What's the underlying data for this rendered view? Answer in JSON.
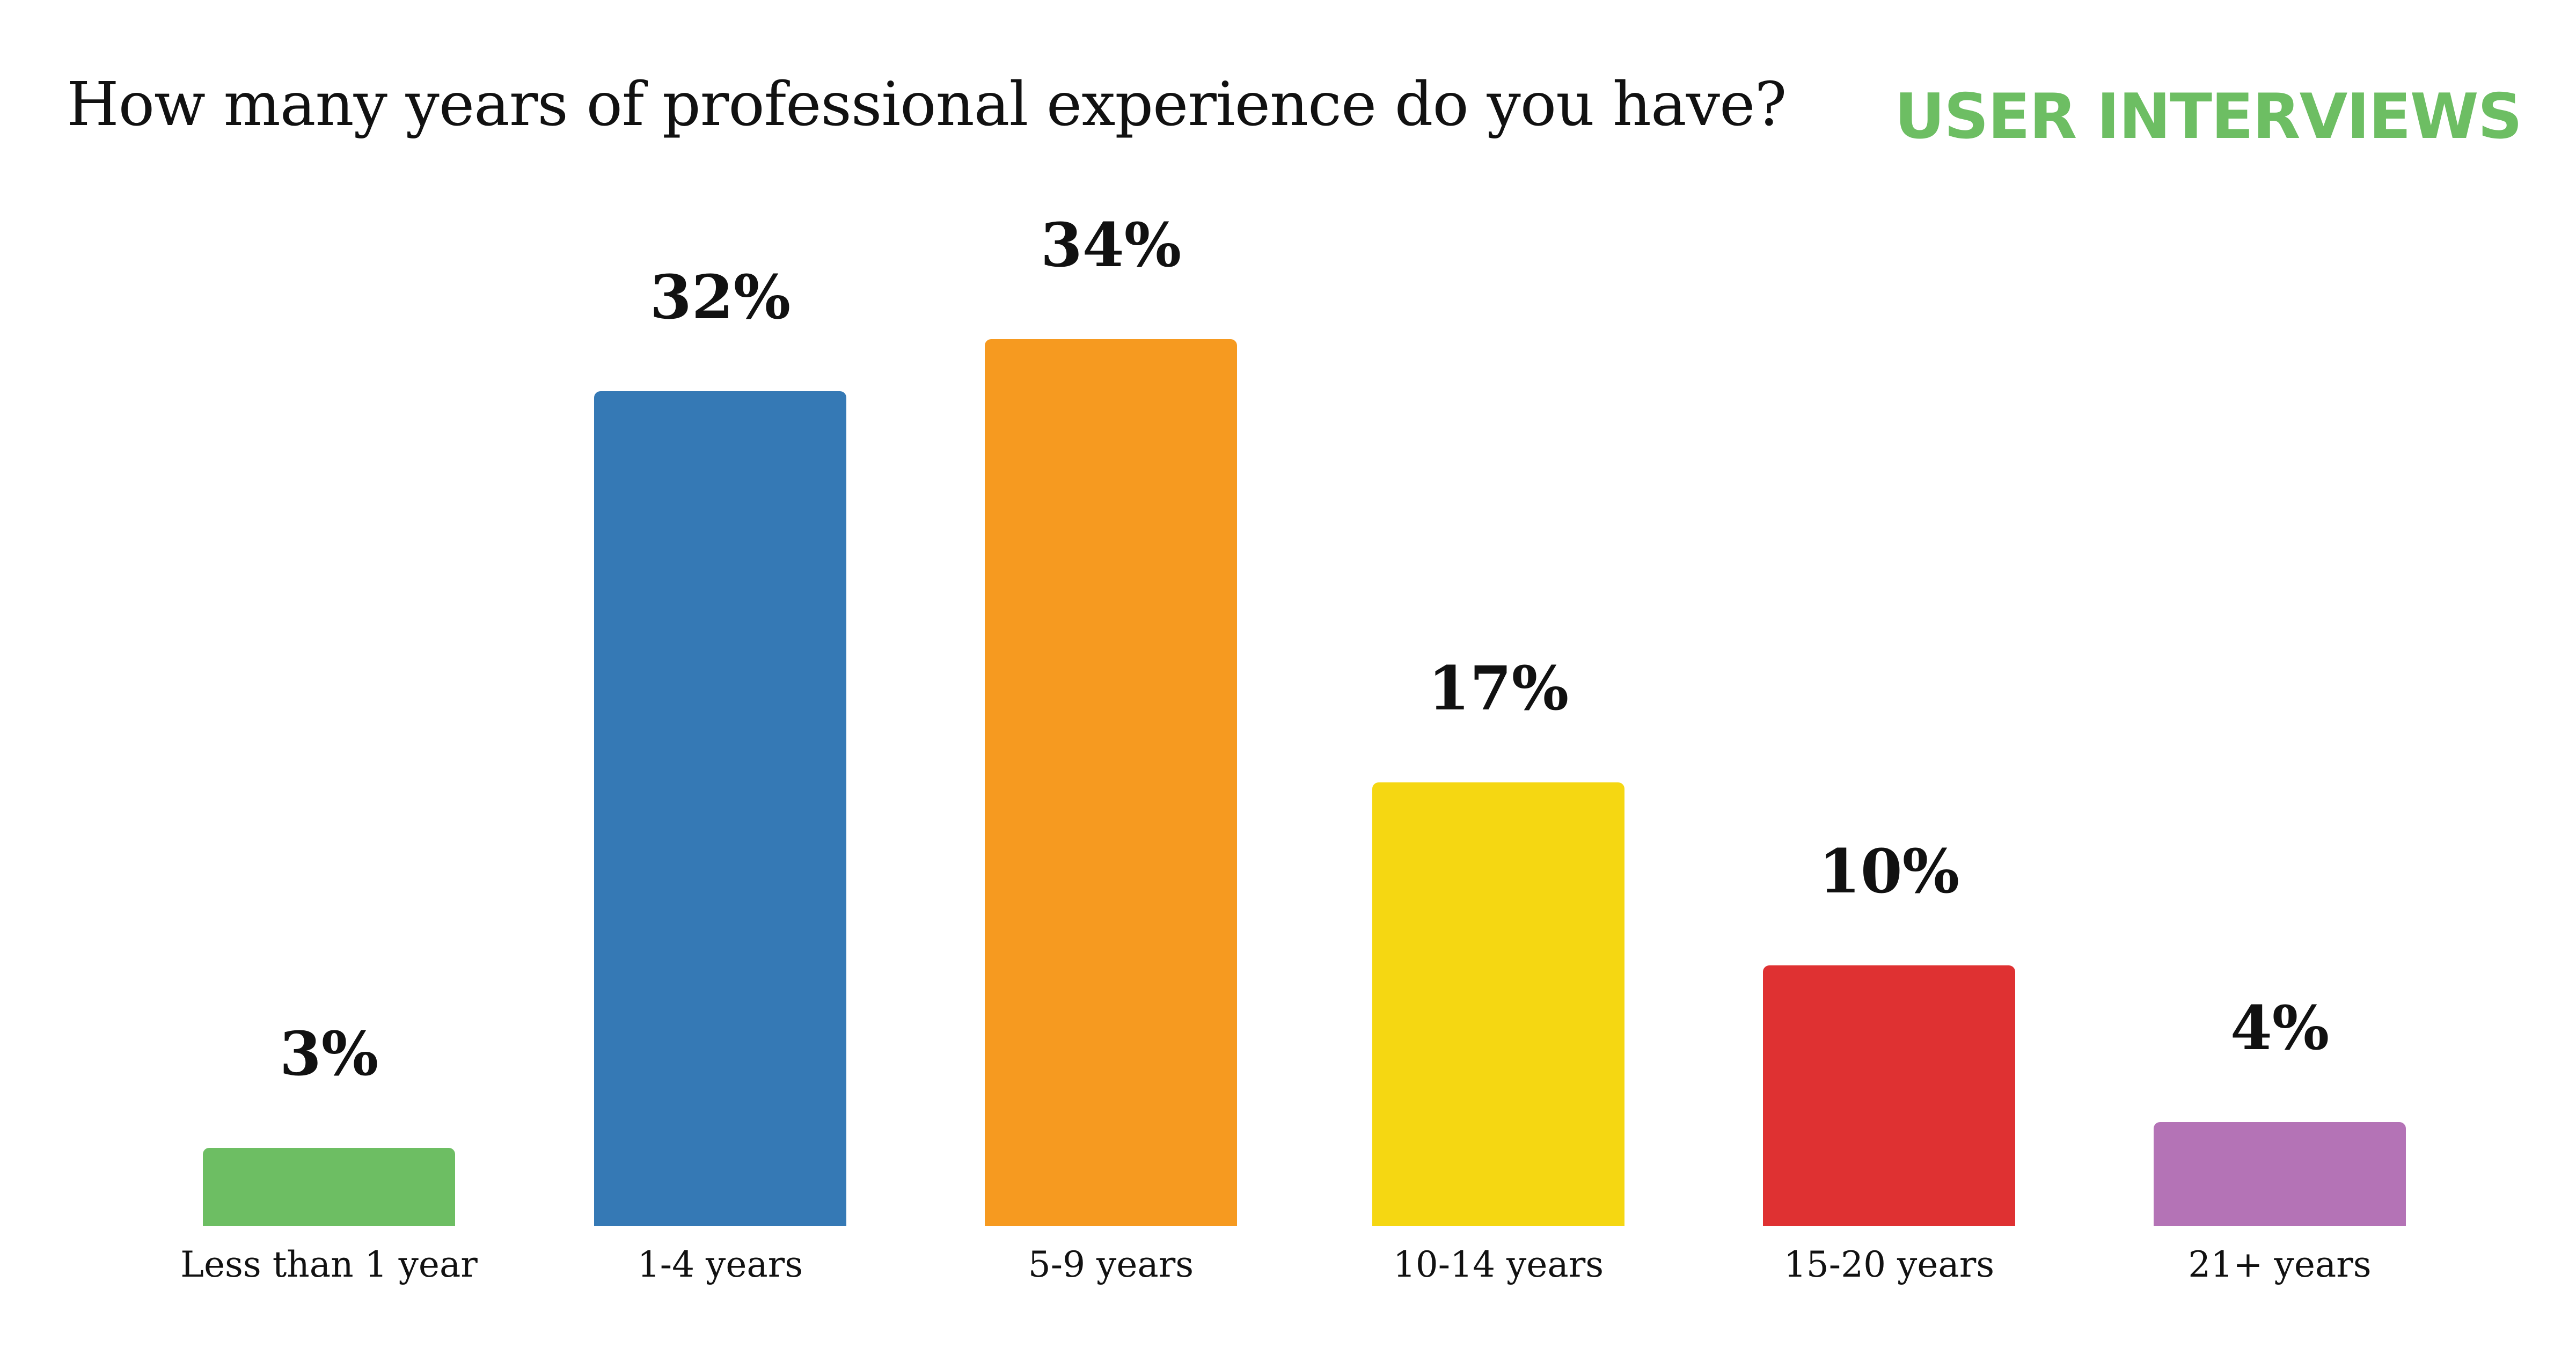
{
  "header": {
    "title": "How many years of professional experience do you have?",
    "logo_text": "USER INTERVIEWS",
    "logo_color": "#6dbe63"
  },
  "chart_data": {
    "type": "bar",
    "title": "How many years of professional experience do you have?",
    "xlabel": "",
    "ylabel": "",
    "ylim": [
      0,
      34
    ],
    "grid": false,
    "legend": "none",
    "categories": [
      "Less than 1 year",
      "1-4 years",
      "5-9 years",
      "10-14 years",
      "15-20 years",
      "21+ years"
    ],
    "values": [
      3,
      32,
      34,
      17,
      10,
      4
    ],
    "value_labels": [
      "3%",
      "32%",
      "34%",
      "17%",
      "10%",
      "4%"
    ],
    "colors": [
      "#6dbe63",
      "#3579b5",
      "#f69a20",
      "#f5d712",
      "#df3132",
      "#b473b6"
    ],
    "unit": "%"
  }
}
